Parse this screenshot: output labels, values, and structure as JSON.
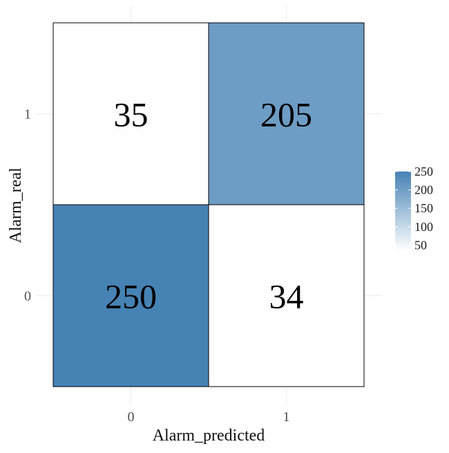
{
  "chart_data": {
    "type": "heatmap",
    "title": "",
    "xlabel": "Alarm_predicted",
    "ylabel": "Alarm_real",
    "x_categories": [
      "0",
      "1"
    ],
    "y_categories": [
      "0",
      "1"
    ],
    "cells": [
      {
        "x": "0",
        "y": "1",
        "value": 35
      },
      {
        "x": "1",
        "y": "1",
        "value": 205
      },
      {
        "x": "0",
        "y": "0",
        "value": 250
      },
      {
        "x": "1",
        "y": "0",
        "value": 34
      }
    ],
    "legend": {
      "position": "right",
      "ticks": [
        250,
        200,
        150,
        100,
        50
      ],
      "low_color": "#ffffff",
      "high_color": "#4682b4",
      "range": [
        34,
        250
      ]
    },
    "grid": true
  }
}
